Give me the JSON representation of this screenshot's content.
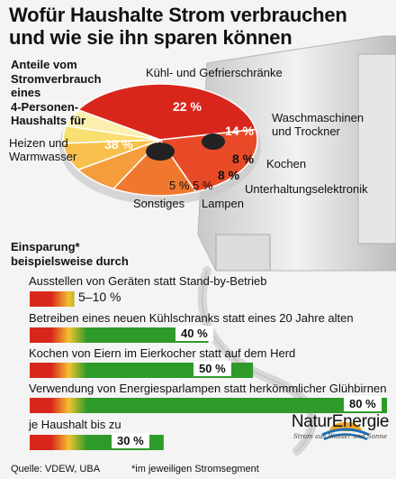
{
  "title_line1": "Wofür Haushalte Strom verbrauchen",
  "title_line2": "und wie sie ihn sparen können",
  "pie_intro": [
    "Anteile vom",
    "Stromverbrauch",
    "eines",
    "4-Personen-",
    "Haushalts für"
  ],
  "chart_data": [
    {
      "type": "pie",
      "slices": [
        {
          "label": "Heizen und Warmwasser",
          "label_lines": [
            "Heizen und",
            "Warmwasser"
          ],
          "value": 38,
          "value_label": "38 %",
          "color": "#d9261c"
        },
        {
          "label": "Kühl- und Gefrierschränke",
          "label_lines": [
            "Kühl- und Gefrierschränke"
          ],
          "value": 22,
          "value_label": "22 %",
          "color": "#e84a27"
        },
        {
          "label": "Waschmaschinen und Trockner",
          "label_lines": [
            "Waschmaschinen",
            "und Trockner"
          ],
          "value": 14,
          "value_label": "14 %",
          "color": "#f0782e"
        },
        {
          "label": "Kochen",
          "label_lines": [
            "Kochen"
          ],
          "value": 8,
          "value_label": "8 %",
          "color": "#f59d3d"
        },
        {
          "label": "Unterhaltungselektronik",
          "label_lines": [
            "Unterhaltungselektronik"
          ],
          "value": 8,
          "value_label": "8 %",
          "color": "#f7c04c"
        },
        {
          "label": "Lampen",
          "label_lines": [
            "Lampen"
          ],
          "value": 5,
          "value_label": "5 %",
          "color": "#f9de72"
        },
        {
          "label": "Sonstiges",
          "label_lines": [
            "Sonstiges"
          ],
          "value": 5,
          "value_label": "5 %",
          "color": "#fbf0b0"
        }
      ]
    },
    {
      "type": "bar",
      "title": "Einsparung* beispielsweise durch",
      "title_lines": [
        "Einsparung*",
        "beispielsweise durch"
      ],
      "bars": [
        {
          "label": "Ausstellen von Geräten statt Stand-by-Betrieb",
          "value": [
            5,
            10
          ],
          "value_label": "5–10 %"
        },
        {
          "label": "Betreiben eines neuen Kühlschranks statt eines 20 Jahre alten",
          "value": 40,
          "value_label": "40 %"
        },
        {
          "label": "Kochen von Eiern im Eierkocher statt auf dem Herd",
          "value": 50,
          "value_label": "50 %"
        },
        {
          "label": "Verwendung von Energiesparlampen statt herkömmlicher Glühbirnen",
          "value": 80,
          "value_label": "80 %"
        },
        {
          "label": "je Haushalt bis zu",
          "value": 30,
          "value_label": "30 %"
        }
      ],
      "xlim": [
        0,
        80
      ],
      "colors": {
        "low": "#d9261c",
        "high": "#2e9a2a"
      }
    }
  ],
  "footer": {
    "source": "Quelle: VDEW, UBA",
    "note": "*im jeweiligen Stromsegment"
  },
  "logo": {
    "name": "NaturEnergie",
    "tagline": "Strom aus Wasser und Sonne"
  }
}
